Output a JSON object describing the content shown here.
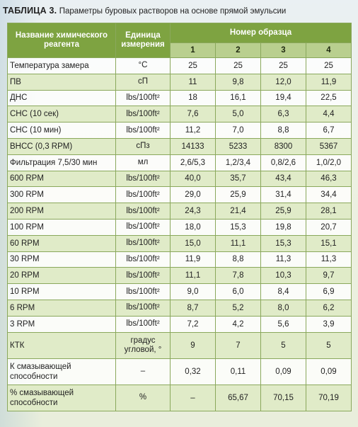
{
  "title": {
    "label": "ТАБЛИЦА 3.",
    "text": "Параметры буровых растворов на основе прямой эмульсии"
  },
  "header": {
    "col_name": "Название химического реагента",
    "col_unit": "Единица измерения",
    "col_group": "Номер образца",
    "samples": [
      "1",
      "2",
      "3",
      "4"
    ]
  },
  "rows": [
    {
      "name": "Температура замера",
      "unit": "°C",
      "values": [
        "25",
        "25",
        "25",
        "25"
      ]
    },
    {
      "name": "ПВ",
      "unit": "сП",
      "values": [
        "11",
        "9,8",
        "12,0",
        "11,9"
      ]
    },
    {
      "name": "ДНС",
      "unit": "lbs/100ft²",
      "values": [
        "18",
        "16,1",
        "19,4",
        "22,5"
      ]
    },
    {
      "name": "СНС (10 сек)",
      "unit": "lbs/100ft²",
      "values": [
        "7,6",
        "5,0",
        "6,3",
        "4,4"
      ]
    },
    {
      "name": "СНС (10 мин)",
      "unit": "lbs/100ft²",
      "values": [
        "11,2",
        "7,0",
        "8,8",
        "6,7"
      ]
    },
    {
      "name": "ВНСС (0,3 RPM)",
      "unit": "сПз",
      "values": [
        "14133",
        "5233",
        "8300",
        "5367"
      ]
    },
    {
      "name": "Фильтрация 7,5/30 мин",
      "unit": "мл",
      "values": [
        "2,6/5,3",
        "1,2/3,4",
        "0,8/2,6",
        "1,0/2,0"
      ]
    },
    {
      "name": "600 RPM",
      "unit": "lbs/100ft²",
      "values": [
        "40,0",
        "35,7",
        "43,4",
        "46,3"
      ]
    },
    {
      "name": "300 RPM",
      "unit": "lbs/100ft²",
      "values": [
        "29,0",
        "25,9",
        "31,4",
        "34,4"
      ]
    },
    {
      "name": "200 RPM",
      "unit": "lbs/100ft²",
      "values": [
        "24,3",
        "21,4",
        "25,9",
        "28,1"
      ]
    },
    {
      "name": "100 RPM",
      "unit": "lbs/100ft²",
      "values": [
        "18,0",
        "15,3",
        "19,8",
        "20,7"
      ]
    },
    {
      "name": "60 RPM",
      "unit": "lbs/100ft²",
      "values": [
        "15,0",
        "11,1",
        "15,3",
        "15,1"
      ]
    },
    {
      "name": "30 RPM",
      "unit": "lbs/100ft²",
      "values": [
        "11,9",
        "8,8",
        "11,3",
        "11,3"
      ]
    },
    {
      "name": "20 RPM",
      "unit": "lbs/100ft²",
      "values": [
        "11,1",
        "7,8",
        "10,3",
        "9,7"
      ]
    },
    {
      "name": "10 RPM",
      "unit": "lbs/100ft²",
      "values": [
        "9,0",
        "6,0",
        "8,4",
        "6,9"
      ]
    },
    {
      "name": "6 RPM",
      "unit": "lbs/100ft²",
      "values": [
        "8,7",
        "5,2",
        "8,0",
        "6,2"
      ]
    },
    {
      "name": "3 RPM",
      "unit": "lbs/100ft²",
      "values": [
        "7,2",
        "4,2",
        "5,6",
        "3,9"
      ]
    },
    {
      "name": "КТК",
      "unit": "градус угловой, °",
      "values": [
        "9",
        "7",
        "5",
        "5"
      ]
    },
    {
      "name": "К смазывающей способности",
      "unit": "–",
      "values": [
        "0,32",
        "0,11",
        "0,09",
        "0,09"
      ]
    },
    {
      "name": "% смазывающей способности",
      "unit": "%",
      "values": [
        "–",
        "65,67",
        "70,15",
        "70,19"
      ]
    }
  ],
  "colors": {
    "header_bg": "#7ea341",
    "subheader_bg": "#b9cf8f",
    "row_alt_bg": "#e0ebc8",
    "border": "#8aa85c"
  }
}
